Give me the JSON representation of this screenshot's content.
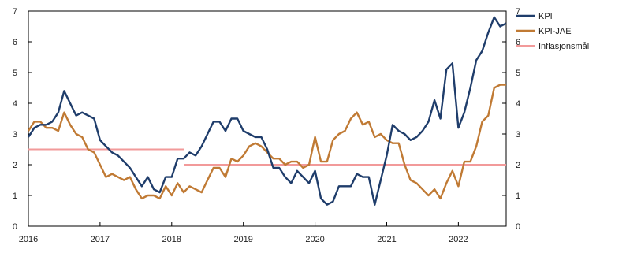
{
  "chart_data": {
    "type": "line",
    "title": "",
    "xlabel": "",
    "ylabel": "",
    "ylim": [
      0,
      7
    ],
    "xlim": [
      2016.0,
      2022.667
    ],
    "x_ticks": [
      2016,
      2017,
      2018,
      2019,
      2020,
      2021,
      2022
    ],
    "x_tick_labels": [
      "2016",
      "2017",
      "2018",
      "2019",
      "2020",
      "2021",
      "2022"
    ],
    "y_ticks": [
      0,
      1,
      2,
      3,
      4,
      5,
      6,
      7
    ],
    "y_tick_labels": [
      "0",
      "1",
      "2",
      "3",
      "4",
      "5",
      "6",
      "7"
    ],
    "grid": false,
    "legend_position": "top-right",
    "legend": [
      "KPI",
      "KPI-JAE",
      "Inflasjonsmål"
    ],
    "series": [
      {
        "name": "KPI",
        "color": "#1f3d6b",
        "x": [
          2016.0,
          2016.083,
          2016.167,
          2016.25,
          2016.333,
          2016.417,
          2016.5,
          2016.583,
          2016.667,
          2016.75,
          2016.833,
          2016.917,
          2017.0,
          2017.083,
          2017.167,
          2017.25,
          2017.333,
          2017.417,
          2017.5,
          2017.583,
          2017.667,
          2017.75,
          2017.833,
          2017.917,
          2018.0,
          2018.083,
          2018.167,
          2018.25,
          2018.333,
          2018.417,
          2018.5,
          2018.583,
          2018.667,
          2018.75,
          2018.833,
          2018.917,
          2019.0,
          2019.083,
          2019.167,
          2019.25,
          2019.333,
          2019.417,
          2019.5,
          2019.583,
          2019.667,
          2019.75,
          2019.833,
          2019.917,
          2020.0,
          2020.083,
          2020.167,
          2020.25,
          2020.333,
          2020.417,
          2020.5,
          2020.583,
          2020.667,
          2020.75,
          2020.833,
          2020.917,
          2021.0,
          2021.083,
          2021.167,
          2021.25,
          2021.333,
          2021.417,
          2021.5,
          2021.583,
          2021.667,
          2021.75,
          2021.833,
          2021.917,
          2022.0,
          2022.083,
          2022.167,
          2022.25,
          2022.333,
          2022.417,
          2022.5,
          2022.583,
          2022.667
        ],
        "values": [
          2.9,
          3.2,
          3.3,
          3.3,
          3.4,
          3.7,
          4.4,
          4.0,
          3.6,
          3.7,
          3.6,
          3.5,
          2.8,
          2.6,
          2.4,
          2.3,
          2.1,
          1.9,
          1.6,
          1.3,
          1.6,
          1.2,
          1.1,
          1.6,
          1.6,
          2.2,
          2.2,
          2.4,
          2.3,
          2.6,
          3.0,
          3.4,
          3.4,
          3.1,
          3.5,
          3.5,
          3.1,
          3.0,
          2.9,
          2.9,
          2.5,
          1.9,
          1.9,
          1.6,
          1.4,
          1.8,
          1.6,
          1.4,
          1.8,
          0.9,
          0.7,
          0.8,
          1.3,
          1.3,
          1.3,
          1.7,
          1.6,
          1.6,
          0.7,
          1.5,
          2.3,
          3.3,
          3.1,
          3.0,
          2.8,
          2.9,
          3.1,
          3.4,
          4.1,
          3.5,
          5.1,
          5.3,
          3.2,
          3.7,
          4.5,
          5.4,
          5.7,
          6.3,
          6.8,
          6.5,
          6.6
        ]
      },
      {
        "name": "KPI-JAE",
        "color": "#c07a34",
        "x": [
          2016.0,
          2016.083,
          2016.167,
          2016.25,
          2016.333,
          2016.417,
          2016.5,
          2016.583,
          2016.667,
          2016.75,
          2016.833,
          2016.917,
          2017.0,
          2017.083,
          2017.167,
          2017.25,
          2017.333,
          2017.417,
          2017.5,
          2017.583,
          2017.667,
          2017.75,
          2017.833,
          2017.917,
          2018.0,
          2018.083,
          2018.167,
          2018.25,
          2018.333,
          2018.417,
          2018.5,
          2018.583,
          2018.667,
          2018.75,
          2018.833,
          2018.917,
          2019.0,
          2019.083,
          2019.167,
          2019.25,
          2019.333,
          2019.417,
          2019.5,
          2019.583,
          2019.667,
          2019.75,
          2019.833,
          2019.917,
          2020.0,
          2020.083,
          2020.167,
          2020.25,
          2020.333,
          2020.417,
          2020.5,
          2020.583,
          2020.667,
          2020.75,
          2020.833,
          2020.917,
          2021.0,
          2021.083,
          2021.167,
          2021.25,
          2021.333,
          2021.417,
          2021.5,
          2021.583,
          2021.667,
          2021.75,
          2021.833,
          2021.917,
          2022.0,
          2022.083,
          2022.167,
          2022.25,
          2022.333,
          2022.417,
          2022.5,
          2022.583,
          2022.667
        ],
        "values": [
          3.1,
          3.4,
          3.4,
          3.2,
          3.2,
          3.1,
          3.7,
          3.3,
          3.0,
          2.9,
          2.5,
          2.4,
          2.0,
          1.6,
          1.7,
          1.6,
          1.5,
          1.6,
          1.2,
          0.9,
          1.0,
          1.0,
          0.9,
          1.3,
          1.0,
          1.4,
          1.1,
          1.3,
          1.2,
          1.1,
          1.5,
          1.9,
          1.9,
          1.6,
          2.2,
          2.1,
          2.3,
          2.6,
          2.7,
          2.6,
          2.4,
          2.2,
          2.2,
          2.0,
          2.1,
          2.1,
          1.9,
          2.0,
          2.9,
          2.1,
          2.1,
          2.8,
          3.0,
          3.1,
          3.5,
          3.7,
          3.3,
          3.4,
          2.9,
          3.0,
          2.8,
          2.7,
          2.7,
          2.0,
          1.5,
          1.4,
          1.2,
          1.0,
          1.2,
          0.9,
          1.4,
          1.8,
          1.3,
          2.1,
          2.1,
          2.6,
          3.4,
          3.6,
          4.5,
          4.6,
          4.6
        ]
      },
      {
        "name": "Inflasjonsmål",
        "color": "#f29a9a",
        "segments": [
          {
            "x": [
              2016.0,
              2018.167
            ],
            "values": [
              2.5,
              2.5
            ]
          },
          {
            "x": [
              2018.167,
              2022.667
            ],
            "values": [
              2.0,
              2.0
            ]
          }
        ]
      }
    ]
  }
}
